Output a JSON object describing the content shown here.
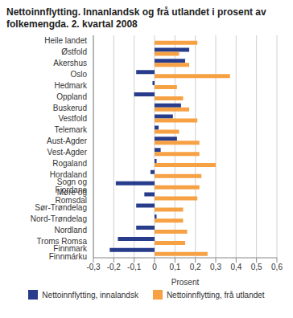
{
  "chart_data": {
    "type": "bar",
    "orientation": "horizontal",
    "title": "Nettoinnflytting. Innanlandsk og frå utlandet i prosent av folkemengda. 2. kvartal 2008",
    "x_label": "Prosent",
    "categories": [
      "Heile landet",
      "Østfold",
      "Akershus",
      "Oslo",
      "Hedmark",
      "Oppland",
      "Buskerud",
      "Vestfold",
      "Telemark",
      "Aust-Agder",
      "Vest-Agder",
      "Rogaland",
      "Hordaland",
      "Sogn og Fjordane",
      "Møre og Romsdal",
      "Sør-Trøndelag",
      "Nord-Trøndelag",
      "Nordland",
      "Troms Romsa",
      "Finnmark Finnmárku"
    ],
    "series": [
      {
        "name": "Nettoinnflytting, innalandsk",
        "color": "#283c8c",
        "values": [
          0,
          0.17,
          0.15,
          -0.09,
          -0.01,
          -0.1,
          0.13,
          0.09,
          0.02,
          0.11,
          0.03,
          0.01,
          -0.02,
          -0.19,
          -0.05,
          -0.09,
          0.01,
          -0.09,
          -0.18,
          -0.22
        ]
      },
      {
        "name": "Nettoinnflytting, frå utlandet",
        "color": "#f7a145",
        "values": [
          0.21,
          0.12,
          0.17,
          0.37,
          0.11,
          0.14,
          0.17,
          0.21,
          0.12,
          0.22,
          0.22,
          0.3,
          0.23,
          0.22,
          0.21,
          0.14,
          0.14,
          0.16,
          0.15,
          0.26
        ]
      }
    ],
    "xlim": [
      -0.3,
      0.6
    ],
    "xticks": [
      {
        "value": -0.3,
        "label": "-0,3"
      },
      {
        "value": -0.2,
        "label": "-0,2"
      },
      {
        "value": -0.1,
        "label": "-0,1"
      },
      0,
      {
        "value": 0.1,
        "label": "0,1"
      },
      {
        "value": 0.2,
        "label": "0,2"
      },
      {
        "value": 0.3,
        "label": "0,3"
      },
      {
        "value": 0.4,
        "label": "0,4"
      },
      {
        "value": 0.5,
        "label": "0,5"
      },
      {
        "value": 0.6,
        "label": "0,6"
      }
    ],
    "grid": true,
    "legend": "bottom"
  }
}
